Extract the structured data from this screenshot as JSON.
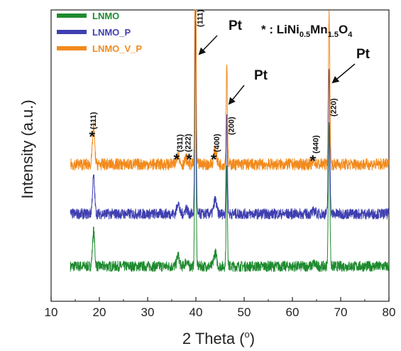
{
  "chart_data": {
    "type": "line",
    "xlabel_main": "2 Theta (",
    "xlabel_unit_sup": "o",
    "xlabel_close": ")",
    "ylabel": "Intensity (a.u.)",
    "xlim": [
      10,
      80
    ],
    "x_ticks": [
      "10",
      "20",
      "30",
      "40",
      "50",
      "60",
      "70",
      "80"
    ],
    "y_ticks_shown": false,
    "legend_position": "top-left",
    "series": [
      {
        "name": "LNMO",
        "color": "#1e8a2e",
        "baseline": 0.12,
        "noise": 0.018
      },
      {
        "name": "LNMO_P",
        "color": "#3f3fb0",
        "baseline": 0.3,
        "noise": 0.018
      },
      {
        "name": "LNMO_V_P",
        "color": "#f28a1c",
        "baseline": 0.47,
        "noise": 0.02
      }
    ],
    "peaks": [
      {
        "two_theta": 18.8,
        "height": 0.13,
        "width": 0.22
      },
      {
        "two_theta": 36.3,
        "height": 0.04,
        "width": 0.25
      },
      {
        "two_theta": 38.0,
        "height": 0.02,
        "width": 0.25
      },
      {
        "two_theta": 39.9,
        "height": 0.92,
        "width": 0.13
      },
      {
        "two_theta": 44.0,
        "height": 0.05,
        "width": 0.28
      },
      {
        "two_theta": 46.4,
        "height": 0.35,
        "width": 0.13
      },
      {
        "two_theta": 64.5,
        "height": 0.01,
        "width": 0.3
      },
      {
        "two_theta": 67.6,
        "height": 0.52,
        "width": 0.15
      }
    ],
    "annotations": {
      "spinel_peaks": [
        {
          "hkl": "(111)",
          "two_theta": 18.8
        },
        {
          "hkl": "(311)",
          "two_theta": 36.3
        },
        {
          "hkl": "(222)",
          "two_theta": 38.0
        },
        {
          "hkl": "(400)",
          "two_theta": 44.0
        },
        {
          "hkl": "(440)",
          "two_theta": 64.5
        }
      ],
      "pt_peaks": [
        {
          "hkl": "(111)",
          "label": "Pt",
          "two_theta": 39.9
        },
        {
          "hkl": "(200)",
          "label": "Pt",
          "two_theta": 46.4
        },
        {
          "hkl": "(220)",
          "label": "Pt",
          "two_theta": 67.6
        }
      ],
      "star_symbol": "*",
      "note_prefix": "* : LiNi",
      "note_sub1": "0.5",
      "note_mid": "Mn",
      "note_sub2": "1.5",
      "note_o": "O",
      "note_sub3": "4"
    }
  }
}
